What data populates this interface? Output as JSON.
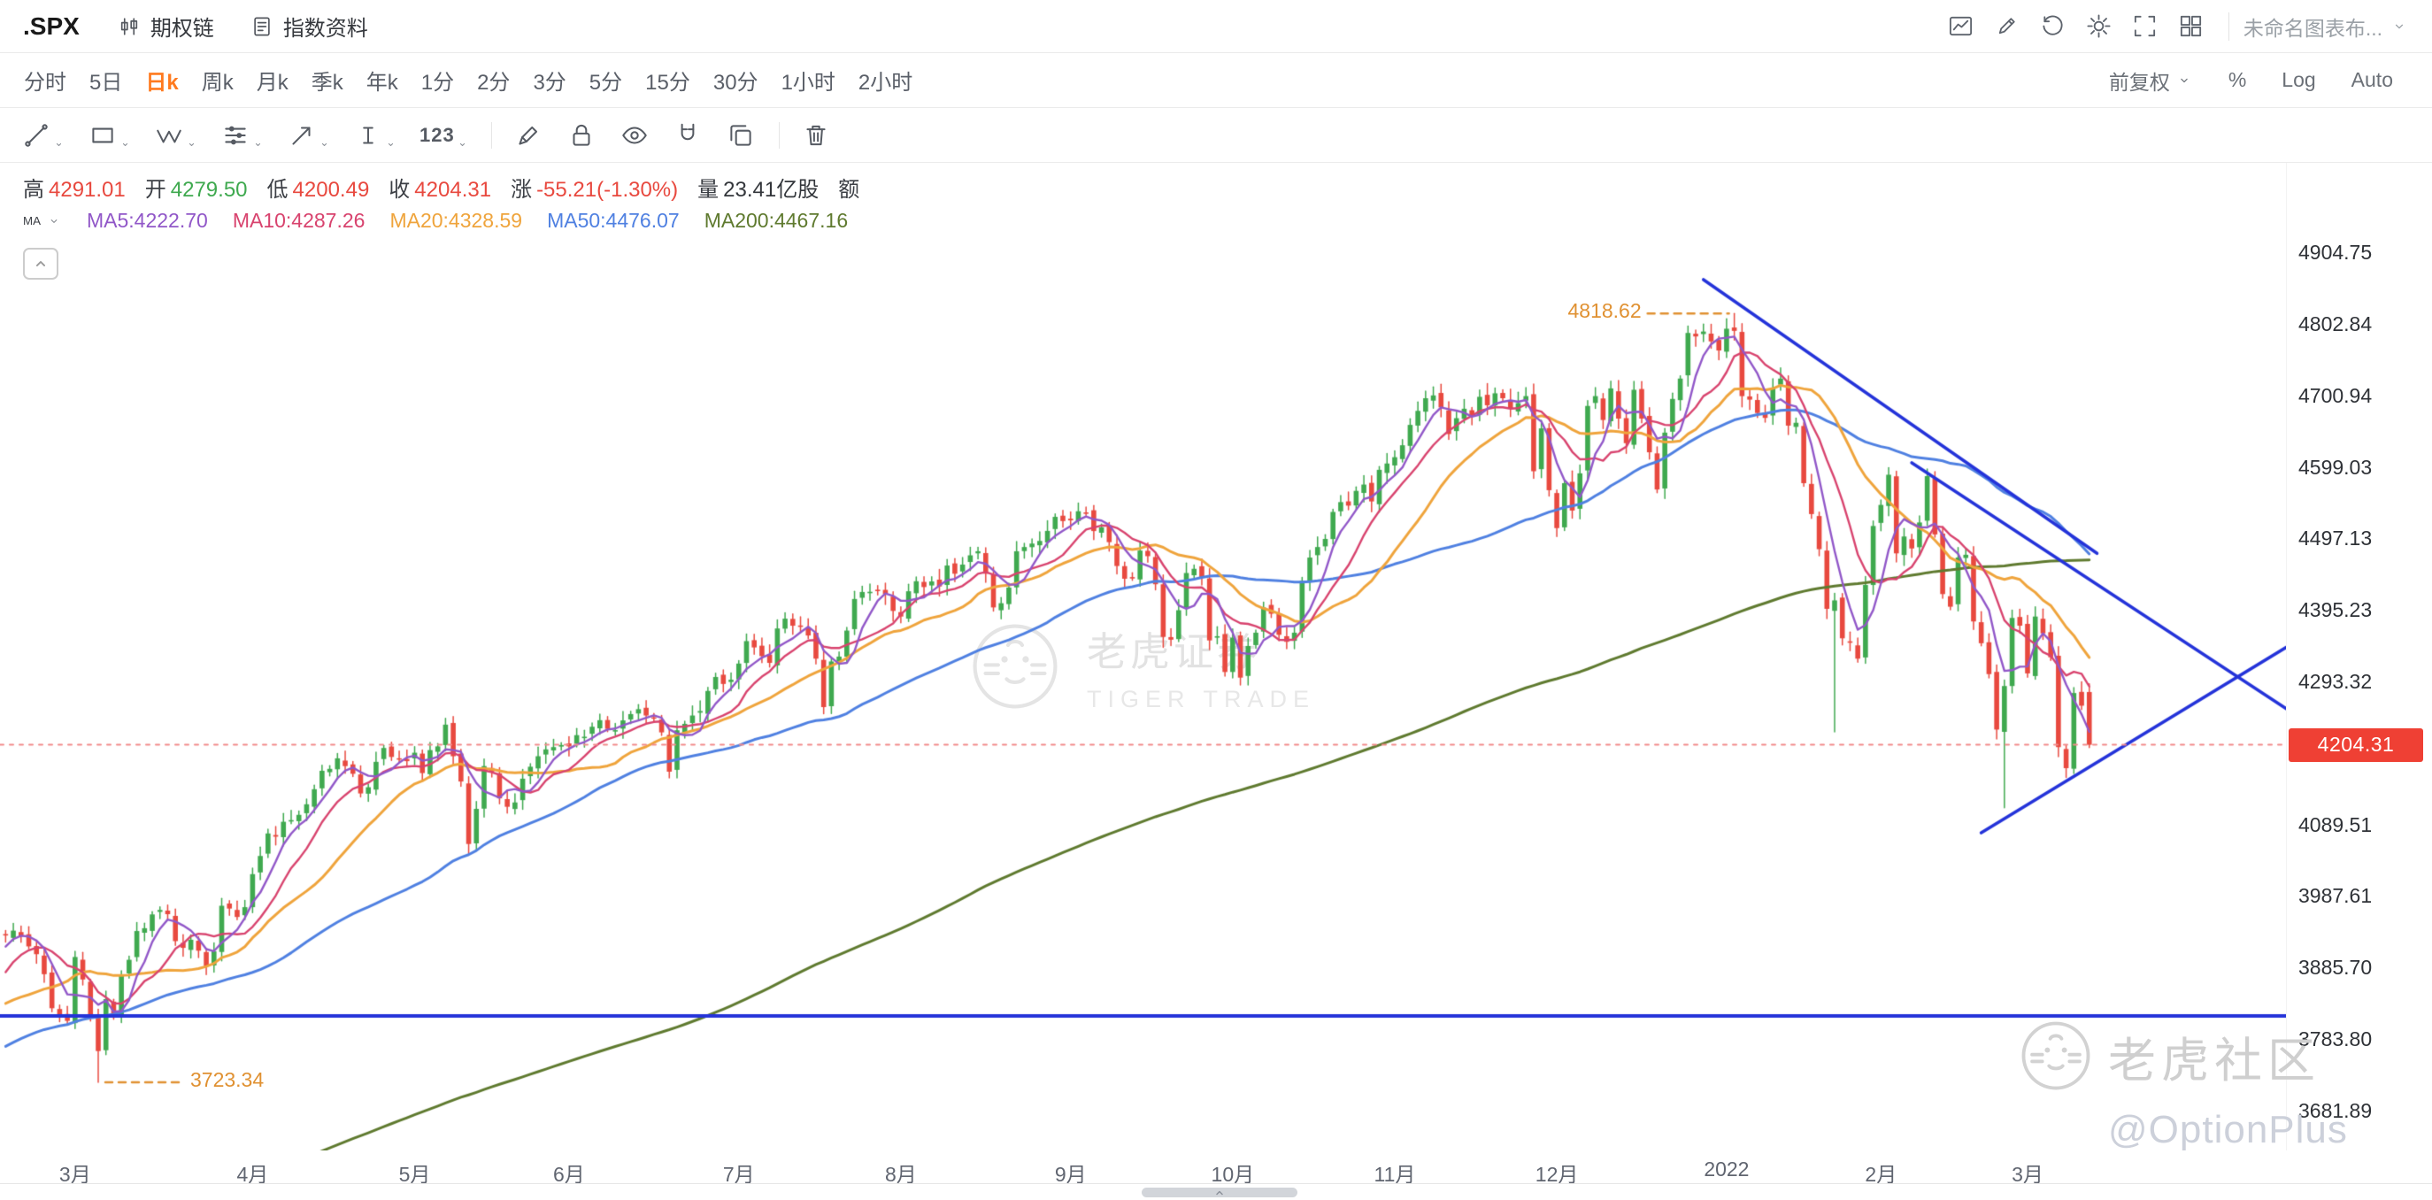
{
  "app": {
    "symbol": ".SPX",
    "buttons": {
      "option_chain": "期权链",
      "index_info": "指数资料"
    },
    "layout_name": "未命名图表布...",
    "top_icons": [
      "chart-snapshot",
      "draw-edit",
      "history-restore",
      "settings-gear",
      "fullscreen",
      "layout-grid"
    ]
  },
  "timeframes": {
    "items": [
      "分时",
      "5日",
      "日k",
      "周k",
      "月k",
      "季k",
      "年k",
      "1分",
      "2分",
      "3分",
      "5分",
      "15分",
      "30分",
      "1小时",
      "2小时"
    ],
    "selected": "日k",
    "right": [
      {
        "label": "前复权",
        "caret": true
      },
      {
        "label": "%",
        "caret": false
      },
      {
        "label": "Log",
        "caret": false
      },
      {
        "label": "Auto",
        "caret": false
      }
    ]
  },
  "toolbar": {
    "tools": [
      {
        "name": "trend-line",
        "caret": true
      },
      {
        "name": "shape",
        "caret": true
      },
      {
        "name": "wave",
        "caret": true
      },
      {
        "name": "pattern",
        "caret": true
      },
      {
        "name": "arrow",
        "caret": true
      },
      {
        "name": "text-cursor",
        "caret": true
      },
      {
        "name": "measure",
        "glyph": "123",
        "caret": true
      },
      {
        "sep": true
      },
      {
        "name": "brush"
      },
      {
        "name": "lock"
      },
      {
        "name": "eye"
      },
      {
        "name": "magnet"
      },
      {
        "name": "duplicate"
      },
      {
        "sep": true
      },
      {
        "name": "trash"
      }
    ]
  },
  "quote": {
    "groups": [
      {
        "label": "高",
        "value": "4291.01",
        "color": "red"
      },
      {
        "label": "开",
        "value": "4279.50",
        "color": "green"
      },
      {
        "label": "低",
        "value": "4200.49",
        "color": "red"
      },
      {
        "label": "收",
        "value": "4204.31",
        "color": "red"
      },
      {
        "label": "涨",
        "value": "-55.21(-1.30%)",
        "color": "red"
      },
      {
        "label": "量",
        "value": "23.41亿股",
        "color": "dark"
      },
      {
        "label": "额",
        "value": "",
        "color": "dark"
      }
    ]
  },
  "ma_legend": {
    "selector": "MA",
    "items": [
      {
        "text": "MA5:4222.70",
        "period": 5,
        "color": "#9157C8"
      },
      {
        "text": "MA10:4287.26",
        "period": 10,
        "color": "#D8436E"
      },
      {
        "text": "MA20:4328.59",
        "period": 20,
        "color": "#EFA43C"
      },
      {
        "text": "MA50:4476.07",
        "period": 50,
        "color": "#4F80E1"
      },
      {
        "text": "MA200:4467.16",
        "period": 200,
        "color": "#5F7A2F"
      }
    ]
  },
  "watermarks": {
    "center_cn": "老虎证券",
    "center_en": "TIGER TRADE",
    "community": "老虎社区",
    "community_handle": "@OptionPlus"
  },
  "colors": {
    "accent_selected": "#FF7A1F",
    "up": "#3FA94F",
    "down": "#E8493F",
    "badge": "#EF4034",
    "drawing_blue": "#2433D9",
    "annotation_orange": "#E09132",
    "current_price_line": "#F28B8B"
  },
  "chart_data": {
    "type": "candlestick",
    "symbol": ".SPX",
    "period": "daily",
    "current_price": 4204.31,
    "current_price_label": "4204.31",
    "y_axis": {
      "tick_labels": [
        "4904.75",
        "4802.84",
        "4700.94",
        "4599.03",
        "4497.13",
        "4395.23",
        "4293.32",
        "4089.51",
        "3987.61",
        "3885.70",
        "3783.80",
        "3681.89"
      ]
    },
    "x_axis": {
      "month_ticks": [
        {
          "label": "3月",
          "day": 9
        },
        {
          "label": "4月",
          "day": 32
        },
        {
          "label": "5月",
          "day": 53
        },
        {
          "label": "6月",
          "day": 73
        },
        {
          "label": "7月",
          "day": 95
        },
        {
          "label": "8月",
          "day": 116
        },
        {
          "label": "9月",
          "day": 138
        },
        {
          "label": "10月",
          "day": 159
        },
        {
          "label": "11月",
          "day": 180
        },
        {
          "label": "12月",
          "day": 201
        },
        {
          "label": "2022",
          "day": 223
        },
        {
          "label": "2月",
          "day": 243
        },
        {
          "label": "3月",
          "day": 262
        }
      ]
    },
    "close_anchors": [
      [
        0,
        3933
      ],
      [
        2,
        3931
      ],
      [
        4,
        3906
      ],
      [
        6,
        3829
      ],
      [
        8,
        3811
      ],
      [
        9,
        3902
      ],
      [
        10,
        3870
      ],
      [
        11,
        3819
      ],
      [
        12,
        3768
      ],
      [
        13,
        3842
      ],
      [
        14,
        3821
      ],
      [
        15,
        3875
      ],
      [
        16,
        3898
      ],
      [
        17,
        3939
      ],
      [
        18,
        3943
      ],
      [
        20,
        3969
      ],
      [
        21,
        3963
      ],
      [
        23,
        3915
      ],
      [
        25,
        3911
      ],
      [
        26,
        3889
      ],
      [
        27,
        3910
      ],
      [
        28,
        3975
      ],
      [
        29,
        3971
      ],
      [
        30,
        3959
      ],
      [
        31,
        3973
      ],
      [
        32,
        4020
      ],
      [
        34,
        4078
      ],
      [
        37,
        4097
      ],
      [
        40,
        4141
      ],
      [
        42,
        4170
      ],
      [
        43,
        4185
      ],
      [
        45,
        4163
      ],
      [
        46,
        4135
      ],
      [
        48,
        4180
      ],
      [
        50,
        4187
      ],
      [
        52,
        4181
      ],
      [
        53,
        4193
      ],
      [
        54,
        4164
      ],
      [
        56,
        4202
      ],
      [
        57,
        4233
      ],
      [
        58,
        4188
      ],
      [
        59,
        4152
      ],
      [
        60,
        4063
      ],
      [
        61,
        4113
      ],
      [
        62,
        4174
      ],
      [
        64,
        4128
      ],
      [
        65,
        4116
      ],
      [
        67,
        4156
      ],
      [
        69,
        4188
      ],
      [
        71,
        4201
      ],
      [
        72,
        4204
      ],
      [
        73,
        4202
      ],
      [
        76,
        4230
      ],
      [
        78,
        4227
      ],
      [
        80,
        4239
      ],
      [
        82,
        4255
      ],
      [
        83,
        4246
      ],
      [
        85,
        4222
      ],
      [
        86,
        4166
      ],
      [
        87,
        4225
      ],
      [
        89,
        4246
      ],
      [
        91,
        4281
      ],
      [
        93,
        4291
      ],
      [
        94,
        4297
      ],
      [
        95,
        4320
      ],
      [
        96,
        4352
      ],
      [
        97,
        4343
      ],
      [
        99,
        4321
      ],
      [
        100,
        4370
      ],
      [
        101,
        4384
      ],
      [
        103,
        4374
      ],
      [
        104,
        4360
      ],
      [
        105,
        4327
      ],
      [
        106,
        4258
      ],
      [
        107,
        4323
      ],
      [
        109,
        4367
      ],
      [
        110,
        4412
      ],
      [
        111,
        4422
      ],
      [
        114,
        4419
      ],
      [
        115,
        4395
      ],
      [
        116,
        4387
      ],
      [
        117,
        4423
      ],
      [
        119,
        4429
      ],
      [
        120,
        4437
      ],
      [
        123,
        4448
      ],
      [
        124,
        4461
      ],
      [
        126,
        4480
      ],
      [
        127,
        4448
      ],
      [
        128,
        4400
      ],
      [
        129,
        4406
      ],
      [
        131,
        4480
      ],
      [
        132,
        4486
      ],
      [
        135,
        4509
      ],
      [
        136,
        4529
      ],
      [
        137,
        4523
      ],
      [
        138,
        4524
      ],
      [
        139,
        4537
      ],
      [
        140,
        4535
      ],
      [
        142,
        4514
      ],
      [
        143,
        4493
      ],
      [
        144,
        4459
      ],
      [
        146,
        4443
      ],
      [
        147,
        4481
      ],
      [
        148,
        4473
      ],
      [
        149,
        4433
      ],
      [
        150,
        4358
      ],
      [
        151,
        4354
      ],
      [
        152,
        4396
      ],
      [
        153,
        4449
      ],
      [
        154,
        4455
      ],
      [
        155,
        4443
      ],
      [
        156,
        4353
      ],
      [
        157,
        4359
      ],
      [
        158,
        4308
      ],
      [
        159,
        4357
      ],
      [
        160,
        4300
      ],
      [
        161,
        4345
      ],
      [
        162,
        4364
      ],
      [
        163,
        4400
      ],
      [
        164,
        4391
      ],
      [
        165,
        4361
      ],
      [
        166,
        4351
      ],
      [
        167,
        4364
      ],
      [
        168,
        4438
      ],
      [
        169,
        4471
      ],
      [
        170,
        4486
      ],
      [
        172,
        4536
      ],
      [
        173,
        4550
      ],
      [
        174,
        4545
      ],
      [
        175,
        4566
      ],
      [
        176,
        4575
      ],
      [
        177,
        4551
      ],
      [
        178,
        4596
      ],
      [
        179,
        4605
      ],
      [
        180,
        4614
      ],
      [
        181,
        4631
      ],
      [
        182,
        4660
      ],
      [
        183,
        4680
      ],
      [
        184,
        4698
      ],
      [
        185,
        4702
      ],
      [
        186,
        4685
      ],
      [
        187,
        4647
      ],
      [
        189,
        4683
      ],
      [
        191,
        4700
      ],
      [
        192,
        4688
      ],
      [
        193,
        4705
      ],
      [
        194,
        4698
      ],
      [
        195,
        4683
      ],
      [
        196,
        4691
      ],
      [
        197,
        4701
      ],
      [
        198,
        4594
      ],
      [
        199,
        4655
      ],
      [
        200,
        4567
      ],
      [
        201,
        4513
      ],
      [
        202,
        4577
      ],
      [
        203,
        4538
      ],
      [
        204,
        4591
      ],
      [
        205,
        4687
      ],
      [
        206,
        4701
      ],
      [
        207,
        4667
      ],
      [
        208,
        4712
      ],
      [
        209,
        4669
      ],
      [
        210,
        4634
      ],
      [
        211,
        4710
      ],
      [
        212,
        4669
      ],
      [
        213,
        4621
      ],
      [
        214,
        4568
      ],
      [
        215,
        4649
      ],
      [
        216,
        4697
      ],
      [
        217,
        4726
      ],
      [
        218,
        4791
      ],
      [
        219,
        4786
      ],
      [
        220,
        4793
      ],
      [
        221,
        4779
      ],
      [
        222,
        4766
      ],
      [
        223,
        4797
      ],
      [
        224,
        4794
      ],
      [
        225,
        4701
      ],
      [
        226,
        4696
      ],
      [
        227,
        4677
      ],
      [
        228,
        4670
      ],
      [
        229,
        4713
      ],
      [
        230,
        4726
      ],
      [
        231,
        4659
      ],
      [
        232,
        4663
      ],
      [
        233,
        4577
      ],
      [
        234,
        4533
      ],
      [
        235,
        4483
      ],
      [
        236,
        4398
      ],
      [
        237,
        4410
      ],
      [
        238,
        4356
      ],
      [
        239,
        4350
      ],
      [
        240,
        4327
      ],
      [
        241,
        4432
      ],
      [
        242,
        4516
      ],
      [
        243,
        4546
      ],
      [
        244,
        4589
      ],
      [
        245,
        4477
      ],
      [
        246,
        4501
      ],
      [
        247,
        4484
      ],
      [
        248,
        4521
      ],
      [
        249,
        4587
      ],
      [
        250,
        4504
      ],
      [
        251,
        4419
      ],
      [
        252,
        4401
      ],
      [
        253,
        4471
      ],
      [
        254,
        4475
      ],
      [
        255,
        4380
      ],
      [
        256,
        4349
      ],
      [
        257,
        4305
      ],
      [
        258,
        4226
      ],
      [
        259,
        4288
      ],
      [
        260,
        4385
      ],
      [
        261,
        4374
      ],
      [
        262,
        4306
      ],
      [
        263,
        4387
      ],
      [
        264,
        4363
      ],
      [
        265,
        4329
      ],
      [
        266,
        4201
      ],
      [
        267,
        4171
      ],
      [
        268,
        4278
      ],
      [
        269,
        4260
      ],
      [
        270,
        4204.31
      ]
    ],
    "prehistory_anchors": [
      [
        -200,
        2955
      ],
      [
        -185,
        3115
      ],
      [
        -170,
        3215
      ],
      [
        -155,
        3305
      ],
      [
        -140,
        3373
      ],
      [
        -125,
        3500
      ],
      [
        -118,
        3581
      ],
      [
        -112,
        3455
      ],
      [
        -106,
        3363
      ],
      [
        -100,
        3237
      ],
      [
        -95,
        3298
      ],
      [
        -88,
        3534
      ],
      [
        -82,
        3400
      ],
      [
        -74,
        3270
      ],
      [
        -68,
        3550
      ],
      [
        -62,
        3622
      ],
      [
        -55,
        3638
      ],
      [
        -48,
        3663
      ],
      [
        -45,
        3695
      ],
      [
        -40,
        3710
      ],
      [
        -35,
        3727
      ],
      [
        -28,
        3768
      ],
      [
        -22,
        3798
      ],
      [
        -17,
        3851
      ],
      [
        -12,
        3714
      ],
      [
        -8,
        3830
      ],
      [
        -4,
        3886
      ],
      [
        -1,
        3935
      ]
    ],
    "wick_overrides": {
      "12": {
        "low": 3723.34
      },
      "224": {
        "high": 4818.62
      },
      "237": {
        "low": 4222.62
      },
      "259": {
        "low": 4114.65
      },
      "267": {
        "low": 4157.87
      },
      "270": {
        "open": 4279.5,
        "high": 4291.01,
        "low": 4200.49
      }
    },
    "annotations": [
      {
        "text": "4818.62",
        "day": 224,
        "price": 4818.62,
        "label_side": "left"
      },
      {
        "text": "3723.34",
        "day": 12,
        "price": 3723.34,
        "label_side": "right"
      }
    ],
    "drawings": {
      "trend_lines": [
        {
          "from": {
            "day": 220,
            "price": 4867
          },
          "to": {
            "day": 271,
            "price": 4477
          }
        },
        {
          "from": {
            "day": 247,
            "price": 4606
          },
          "to": {
            "day": 297,
            "price": 4245
          }
        },
        {
          "from": {
            "day": 256,
            "price": 4079
          },
          "to": {
            "day": 297,
            "price": 4353
          }
        }
      ],
      "horizontal_line_price": 3818
    }
  }
}
